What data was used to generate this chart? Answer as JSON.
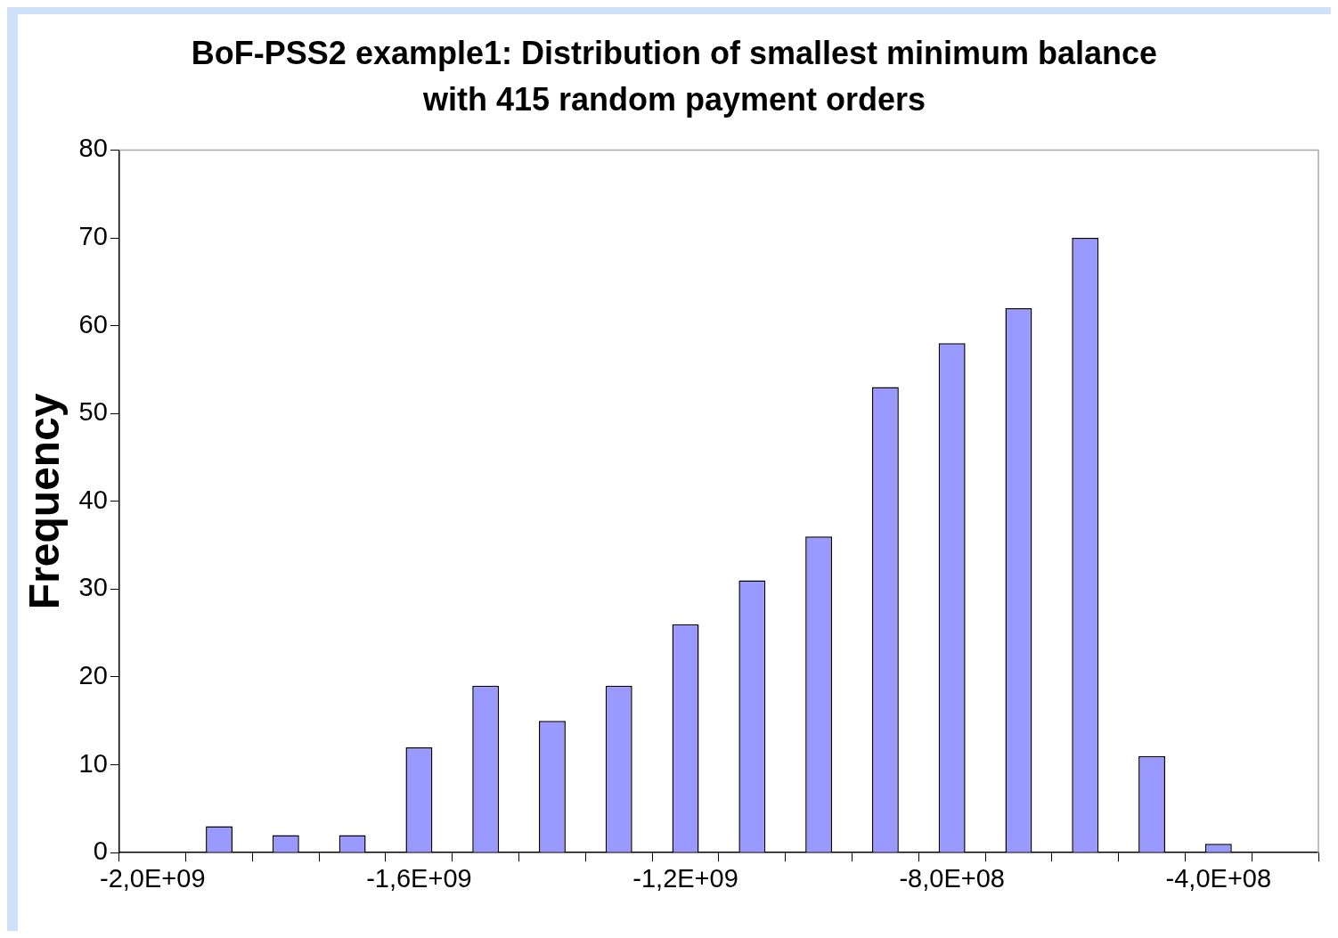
{
  "chart_data": {
    "type": "bar",
    "title": "BoF-PSS2 example1: Distribution of smallest minimum balance with 415 random payment orders",
    "ylabel": "Frequency",
    "categories": [
      "-2,0E+09",
      null,
      null,
      null,
      "-1,6E+09",
      null,
      null,
      null,
      "-1,2E+09",
      null,
      null,
      null,
      "-8,0E+08",
      null,
      null,
      null,
      "-4,0E+08",
      null
    ],
    "values": [
      0,
      3,
      2,
      2,
      12,
      19,
      15,
      19,
      26,
      31,
      36,
      53,
      58,
      62,
      70,
      11,
      1,
      0
    ],
    "color": "#9999ff",
    "ylim": [
      0,
      80
    ],
    "yticks": [
      0,
      10,
      20,
      30,
      40,
      50,
      60,
      70,
      80
    ],
    "grid": false,
    "legend": false
  }
}
